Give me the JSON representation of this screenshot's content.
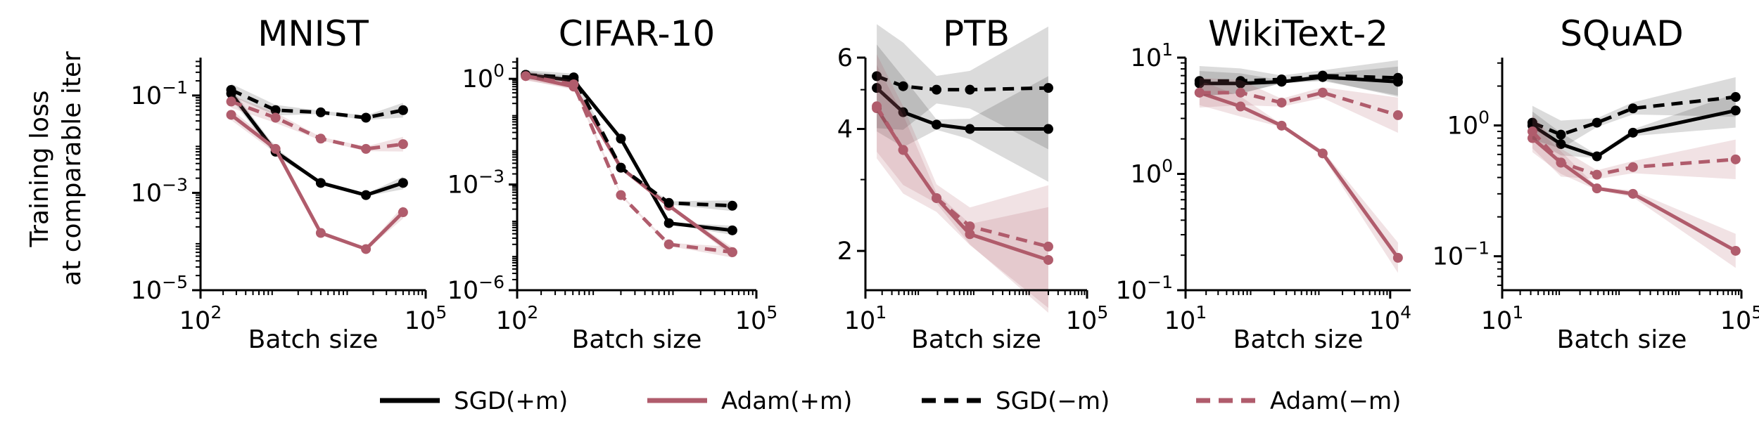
{
  "figure": {
    "ylabel_line1": "Training loss",
    "ylabel_line2": "at comparable iter"
  },
  "colors": {
    "sgd": "#000000",
    "adam": "#b05c6c"
  },
  "legend": [
    {
      "label": "SGD(+m)",
      "color": "#000000",
      "dashed": false
    },
    {
      "label": "Adam(+m)",
      "color": "#b05c6c",
      "dashed": false
    },
    {
      "label": "SGD(−m)",
      "color": "#000000",
      "dashed": true
    },
    {
      "label": "Adam(−m)",
      "color": "#b05c6c",
      "dashed": true
    }
  ],
  "chart_data": [
    {
      "type": "line",
      "title": "MNIST",
      "xlabel": "Batch size",
      "xscale": "log",
      "yscale": "log",
      "xlim": [
        100,
        100000
      ],
      "ylim": [
        1e-05,
        0.6
      ],
      "xticks": [
        {
          "v": 100,
          "base": "10",
          "exp": "2"
        },
        {
          "v": 100000,
          "base": "10",
          "exp": "5"
        }
      ],
      "yticks": [
        {
          "v": 0.1,
          "base": "10",
          "exp": "−1"
        },
        {
          "v": 0.001,
          "base": "10",
          "exp": "−3"
        },
        {
          "v": 1e-05,
          "base": "10",
          "exp": "−5"
        }
      ],
      "series": [
        {
          "name": "SGD(+m)",
          "x": [
            256,
            1000,
            4000,
            16000,
            50000
          ],
          "y": [
            0.11,
            0.007,
            0.0016,
            0.0009,
            0.0016
          ]
        },
        {
          "name": "Adam(+m)",
          "x": [
            256,
            1000,
            4000,
            16000,
            50000
          ],
          "y": [
            0.04,
            0.008,
            0.00015,
            7e-05,
            0.0004
          ]
        },
        {
          "name": "SGD(−m)",
          "x": [
            256,
            1000,
            4000,
            16000,
            50000
          ],
          "y": [
            0.13,
            0.05,
            0.045,
            0.035,
            0.05
          ]
        },
        {
          "name": "Adam(−m)",
          "x": [
            256,
            1000,
            4000,
            16000,
            50000
          ],
          "y": [
            0.075,
            0.035,
            0.013,
            0.008,
            0.01
          ]
        }
      ]
    },
    {
      "type": "line",
      "title": "CIFAR-10",
      "xlabel": "Batch size",
      "xscale": "log",
      "yscale": "log",
      "xlim": [
        100,
        100000
      ],
      "ylim": [
        1e-06,
        4
      ],
      "xticks": [
        {
          "v": 100,
          "base": "10",
          "exp": "2"
        },
        {
          "v": 100000,
          "base": "10",
          "exp": "5"
        }
      ],
      "yticks": [
        {
          "v": 1,
          "base": "10",
          "exp": "0"
        },
        {
          "v": 0.001,
          "base": "10",
          "exp": "−3"
        },
        {
          "v": 1e-06,
          "base": "10",
          "exp": "−6"
        }
      ],
      "series": [
        {
          "name": "SGD(+m)",
          "x": [
            128,
            512,
            2000,
            8000,
            50000
          ],
          "y": [
            1.3,
            0.9,
            0.02,
            8e-05,
            5e-05
          ]
        },
        {
          "name": "Adam(+m)",
          "x": [
            128,
            512,
            2000,
            8000,
            50000
          ],
          "y": [
            1.2,
            0.6,
            0.003,
            0.00025,
            1.2e-05
          ]
        },
        {
          "name": "SGD(−m)",
          "x": [
            128,
            512,
            2000,
            8000,
            50000
          ],
          "y": [
            1.3,
            1.1,
            0.003,
            0.0003,
            0.00025
          ]
        },
        {
          "name": "Adam(−m)",
          "x": [
            128,
            512,
            2000,
            8000,
            50000
          ],
          "y": [
            1.2,
            0.7,
            0.0005,
            2e-05,
            1.2e-05
          ]
        }
      ]
    },
    {
      "type": "line",
      "title": "PTB",
      "xlabel": "Batch size",
      "xscale": "log",
      "yscale": "log",
      "xlim": [
        10,
        100000
      ],
      "ylim": [
        1.6,
        6
      ],
      "xticks": [
        {
          "v": 10,
          "base": "10",
          "exp": "1"
        },
        {
          "v": 100000,
          "base": "10",
          "exp": "5"
        }
      ],
      "yticks": [
        {
          "v": 6,
          "text": "6"
        },
        {
          "v": 4,
          "text": "4"
        },
        {
          "v": 2,
          "text": "2"
        }
      ],
      "series": [
        {
          "name": "SGD(+m)",
          "x": [
            16,
            48,
            192,
            768,
            20000
          ],
          "y": [
            5.05,
            4.4,
            4.1,
            4.0,
            4.0
          ]
        },
        {
          "name": "Adam(+m)",
          "x": [
            16,
            48,
            192,
            768,
            20000
          ],
          "y": [
            4.5,
            3.55,
            2.7,
            2.2,
            1.9
          ]
        },
        {
          "name": "SGD(−m)",
          "x": [
            16,
            48,
            192,
            768,
            20000
          ],
          "y": [
            5.4,
            5.1,
            5.0,
            5.0,
            5.05
          ]
        },
        {
          "name": "Adam(−m)",
          "x": [
            16,
            48,
            192,
            768,
            20000
          ],
          "y": [
            4.55,
            3.55,
            2.7,
            2.3,
            2.05
          ]
        }
      ]
    },
    {
      "type": "line",
      "title": "WikiText-2",
      "xlabel": "Batch size",
      "xscale": "log",
      "yscale": "log",
      "xlim": [
        10,
        20000
      ],
      "ylim": [
        0.1,
        10
      ],
      "xticks": [
        {
          "v": 10,
          "base": "10",
          "exp": "1"
        },
        {
          "v": 10000,
          "base": "10",
          "exp": "4"
        }
      ],
      "yticks": [
        {
          "v": 10,
          "base": "10",
          "exp": "1"
        },
        {
          "v": 1,
          "base": "10",
          "exp": "0"
        },
        {
          "v": 0.1,
          "base": "10",
          "exp": "−1"
        }
      ],
      "series": [
        {
          "name": "SGD(+m)",
          "x": [
            16,
            64,
            256,
            1024,
            13000
          ],
          "y": [
            6.0,
            6.0,
            6.2,
            6.8,
            6.2
          ]
        },
        {
          "name": "Adam(+m)",
          "x": [
            16,
            64,
            256,
            1024,
            13000
          ],
          "y": [
            5.0,
            3.8,
            2.6,
            1.5,
            0.19
          ]
        },
        {
          "name": "SGD(−m)",
          "x": [
            16,
            64,
            256,
            1024,
            13000
          ],
          "y": [
            6.3,
            6.3,
            6.5,
            7.0,
            6.7
          ]
        },
        {
          "name": "Adam(−m)",
          "x": [
            16,
            64,
            256,
            1024,
            13000
          ],
          "y": [
            5.0,
            5.0,
            4.1,
            5.0,
            3.2
          ]
        }
      ]
    },
    {
      "type": "line",
      "title": "SQuAD",
      "xlabel": "Batch size",
      "xscale": "log",
      "yscale": "log",
      "xlim": [
        10,
        100000
      ],
      "ylim": [
        0.055,
        3.3
      ],
      "xticks": [
        {
          "v": 10,
          "base": "10",
          "exp": "1"
        },
        {
          "v": 100000,
          "base": "10",
          "exp": "5"
        }
      ],
      "yticks": [
        {
          "v": 1,
          "base": "10",
          "exp": "0"
        },
        {
          "v": 0.1,
          "base": "10",
          "exp": "−1"
        }
      ],
      "series": [
        {
          "name": "SGD(+m)",
          "x": [
            32,
            96,
            384,
            1536,
            80000
          ],
          "y": [
            1.0,
            0.72,
            0.58,
            0.88,
            1.3
          ]
        },
        {
          "name": "Adam(+m)",
          "x": [
            32,
            96,
            384,
            1536,
            80000
          ],
          "y": [
            0.8,
            0.52,
            0.33,
            0.3,
            0.11
          ]
        },
        {
          "name": "SGD(−m)",
          "x": [
            32,
            96,
            384,
            1536,
            80000
          ],
          "y": [
            1.05,
            0.85,
            1.05,
            1.35,
            1.65
          ]
        },
        {
          "name": "Adam(−m)",
          "x": [
            32,
            96,
            384,
            1536,
            80000
          ],
          "y": [
            0.9,
            0.52,
            0.42,
            0.48,
            0.55
          ]
        }
      ]
    }
  ]
}
